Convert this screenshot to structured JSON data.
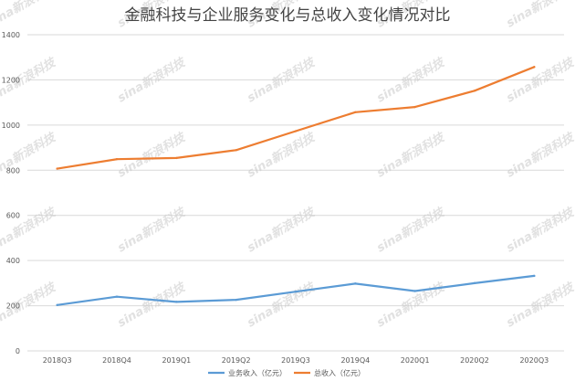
{
  "chart_data": {
    "type": "line",
    "title": "金融科技与企业服务变化与总收入变化情况对比",
    "categories": [
      "2018Q3",
      "2018Q4",
      "2019Q1",
      "2019Q2",
      "2019Q3",
      "2019Q4",
      "2020Q1",
      "2020Q2",
      "2020Q3"
    ],
    "ylim": [
      0,
      1400
    ],
    "yticks": [
      0,
      200,
      400,
      600,
      800,
      1000,
      1200,
      1400
    ],
    "grid": true,
    "legend_position": "bottom",
    "series": [
      {
        "name": "业务收入（亿元）",
        "color": "#5b9bd5",
        "values": [
          203,
          240,
          217,
          226,
          262,
          298,
          265,
          300,
          332
        ]
      },
      {
        "name": "总收入（亿元）",
        "color": "#ed7d31",
        "values": [
          807,
          849,
          854,
          889,
          973,
          1057,
          1080,
          1152,
          1257
        ]
      }
    ]
  },
  "watermark": {
    "text": "sina新浪科技"
  }
}
